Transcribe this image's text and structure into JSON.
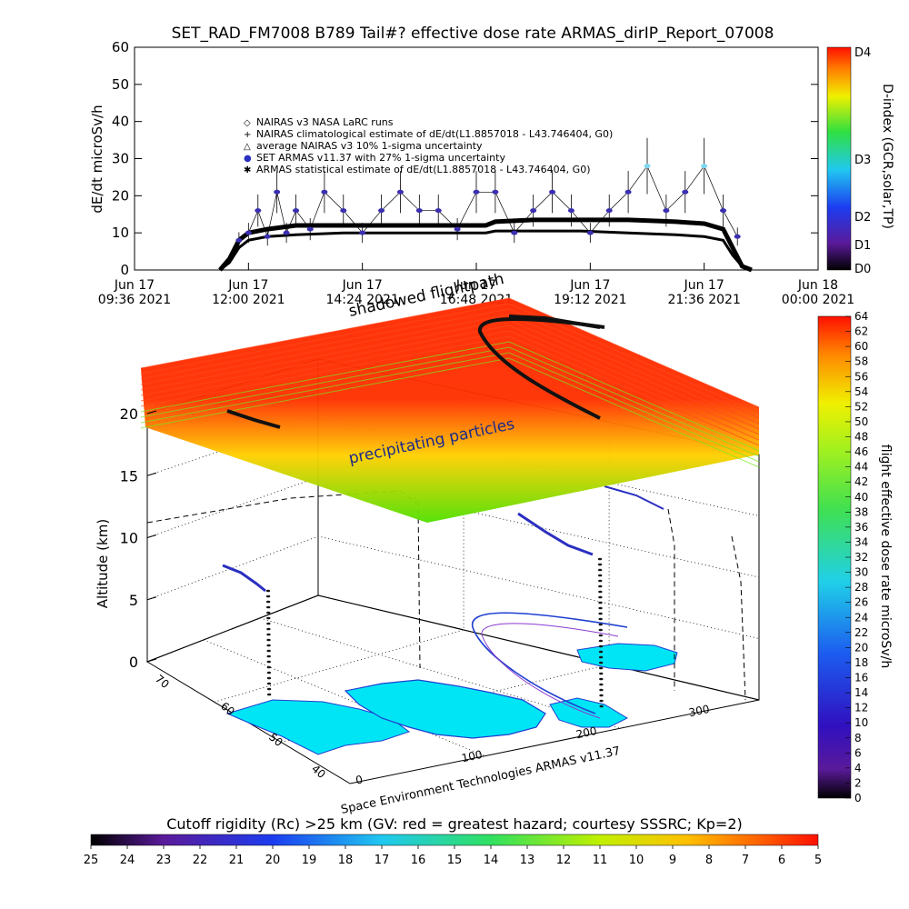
{
  "title": "SET_RAD_FM7008  B789 Tail#? effective dose rate ARMAS_dirIP_Report_07008",
  "colors": {
    "armas_point": "#3a2fb0",
    "armas_point_light": "#7fd8f0",
    "dose_curve": "#000000",
    "slab_top": "#ff1a00",
    "slab_mid": "#ffd000",
    "slab_low": "#55e000",
    "map_land": "#00e5f5",
    "map_coast": "#1f3fd0"
  },
  "chart_data": [
    {
      "type": "line",
      "title": "SET_RAD_FM7008  B789 Tail#? effective dose rate ARMAS_dirIP_Report_07008",
      "ylabel": "dE/dt microSv/h",
      "ylim": [
        0,
        60
      ],
      "yticks": [
        "0",
        "10",
        "20",
        "30",
        "40",
        "50",
        "60"
      ],
      "xticks": [
        {
          "line1": "Jun 17",
          "line2": "09:36 2021"
        },
        {
          "line1": "Jun 17",
          "line2": "12:00 2021"
        },
        {
          "line1": "Jun 17",
          "line2": "14:24 2021"
        },
        {
          "line1": "Jun 17",
          "line2": "16:48 2021"
        },
        {
          "line1": "Jun 17",
          "line2": "19:12 2021"
        },
        {
          "line1": "Jun 17",
          "line2": "21:36 2021"
        },
        {
          "line1": "Jun 18",
          "line2": "00:00 2021"
        }
      ],
      "legend": [
        {
          "symbol": "◇",
          "label": "NAIRAS v3 NASA LaRC runs"
        },
        {
          "symbol": "+",
          "label": "NAIRAS climatological estimate of dE/dt(L1.8857018 - L43.746404, G0)"
        },
        {
          "symbol": "△",
          "label": "average NAIRAS v3 10% 1-sigma uncertainty"
        },
        {
          "symbol": "●",
          "label": "SET ARMAS v11.37 with 27% 1-sigma uncertainty"
        },
        {
          "symbol": "✱",
          "label": "ARMAS statistical estimate of dE/dt(L1.8857018 - L43.746404, G0)"
        }
      ],
      "series": [
        {
          "name": "SET ARMAS v11.37 with 27% 1-sigma uncertainty",
          "x_hours": [
            11.8,
            12.0,
            12.2,
            12.4,
            12.6,
            12.8,
            13.0,
            13.3,
            13.6,
            14.0,
            14.4,
            14.8,
            15.2,
            15.6,
            16.0,
            16.4,
            16.8,
            17.2,
            17.6,
            18.0,
            18.4,
            18.8,
            19.2,
            19.6,
            20.0,
            20.4,
            20.8,
            21.2,
            21.6,
            22.0,
            22.3
          ],
          "y": [
            8,
            10,
            16,
            9,
            21,
            10,
            16,
            11,
            21,
            16,
            10,
            16,
            21,
            16,
            16,
            11,
            21,
            21,
            10,
            16,
            21,
            16,
            10,
            16,
            21,
            28,
            16,
            21,
            28,
            16,
            9
          ]
        },
        {
          "name": "NAIRAS climatological estimate",
          "x_hours": [
            11.4,
            11.6,
            11.8,
            12.0,
            12.4,
            13.0,
            14.0,
            15.0,
            16.0,
            17.0,
            17.2,
            18.0,
            19.0,
            20.0,
            21.0,
            21.6,
            22.0,
            22.2,
            22.4,
            22.6
          ],
          "y": [
            0,
            3,
            8,
            10,
            11,
            12,
            12,
            12,
            12,
            12,
            13,
            13.5,
            13.5,
            13.5,
            13,
            12.5,
            11,
            6,
            1,
            0
          ]
        },
        {
          "name": "ARMAS statistical estimate",
          "x_hours": [
            11.4,
            11.6,
            11.8,
            12.0,
            12.4,
            13.0,
            14.0,
            15.0,
            16.0,
            17.0,
            17.2,
            18.0,
            19.0,
            20.0,
            21.0,
            21.6,
            22.0,
            22.2,
            22.4,
            22.6
          ],
          "y": [
            0,
            2,
            6,
            8,
            9,
            9.5,
            10,
            10,
            10,
            10,
            10.5,
            10.5,
            10.5,
            10,
            9.5,
            9,
            8,
            4,
            1,
            0
          ]
        }
      ],
      "right_colorbar": {
        "label": "D-index (GCR,solar,TP)",
        "ticks": [
          "D0",
          "D1",
          "D2",
          "D3",
          "D4"
        ]
      }
    },
    {
      "type": "heatmap",
      "title": "",
      "ylabel": "Altitude (km)",
      "zlim": [
        0,
        20
      ],
      "zticks": [
        "0",
        "5",
        "10",
        "15",
        "20"
      ],
      "y_axis_ticks": [
        "40",
        "50",
        "60",
        "70"
      ],
      "x_axis_ticks": [
        "0",
        "100",
        "200",
        "300"
      ],
      "annotations": [
        "shadowed flightpath",
        "precipitating particles"
      ],
      "credit": "Space Environment Technologies ARMAS v11.37",
      "right_colorbar": {
        "label": "flight effective dose rate microSv/h",
        "min": 0,
        "max": 64,
        "step": 2
      },
      "bottom_colorbar": {
        "label": "Cutoff rigidity (Rc) >25 km (GV: red = greatest hazard; courtesy SSSRC; Kp=2)",
        "ticks": [
          "25",
          "24",
          "23",
          "22",
          "21",
          "20",
          "19",
          "18",
          "17",
          "16",
          "15",
          "14",
          "13",
          "12",
          "11",
          "10",
          "9",
          "8",
          "7",
          "6",
          "5"
        ]
      }
    }
  ]
}
